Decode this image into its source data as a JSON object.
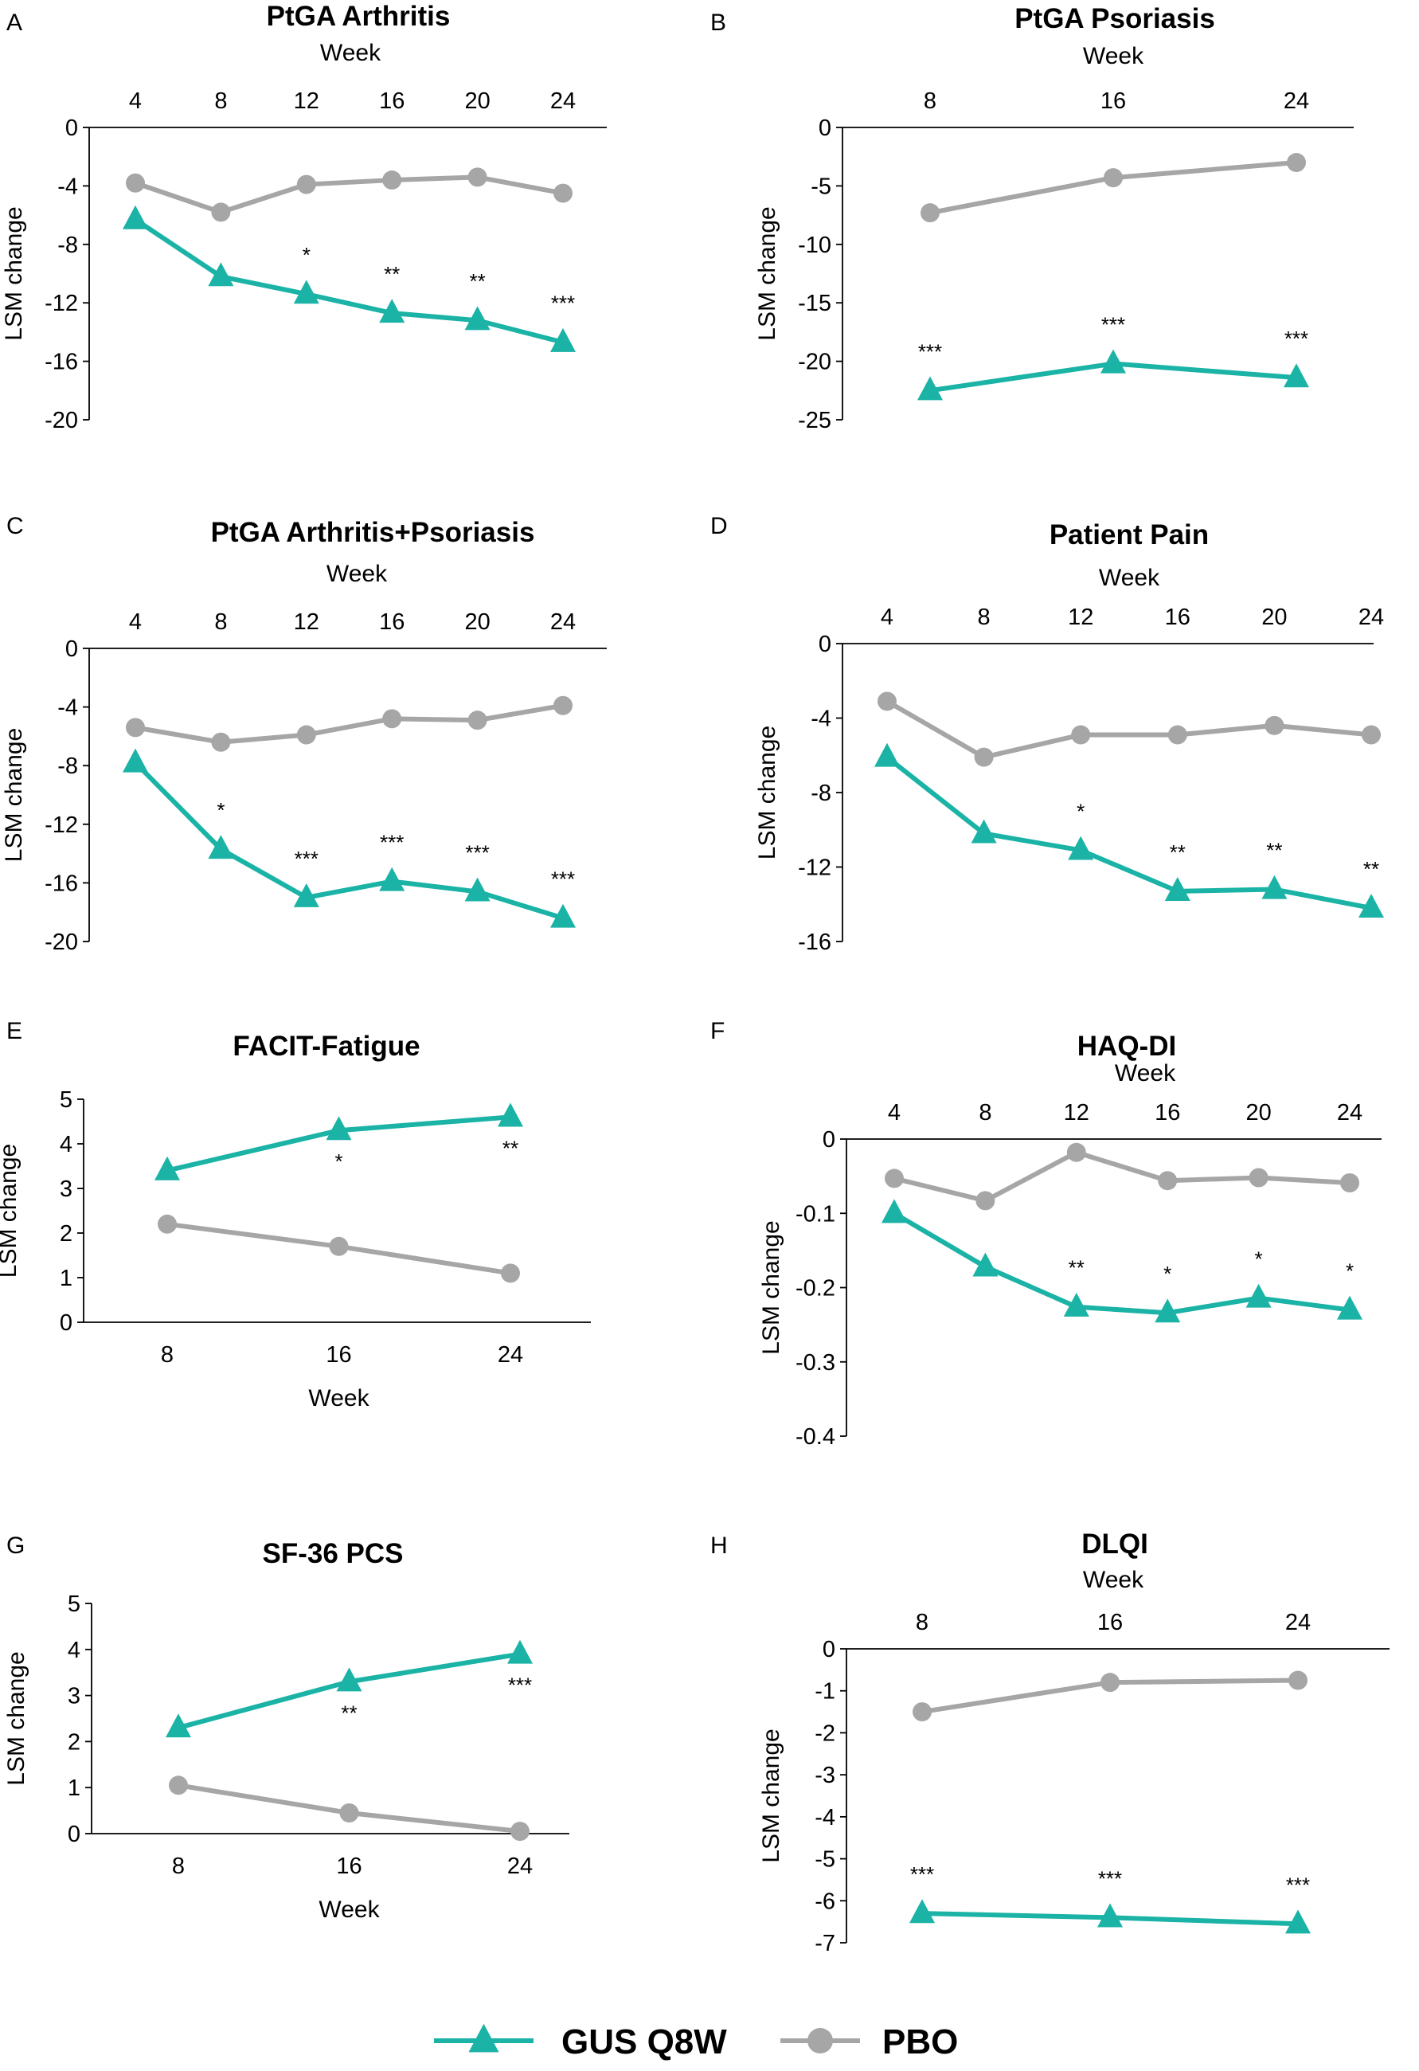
{
  "colors": {
    "gus": "#1ab3a6",
    "pbo": "#a6a6a6",
    "axis": "#000000"
  },
  "legend": [
    {
      "label": "GUS Q8W",
      "series": "gus",
      "marker": "triangle"
    },
    {
      "label": "PBO",
      "series": "pbo",
      "marker": "circle"
    }
  ],
  "chart_data": [
    {
      "letter": "A",
      "type": "line",
      "title": "PtGA Arthritis",
      "xlabel": "Week",
      "xlabel_position": "top",
      "ylabel": "LSM change",
      "x": [
        4,
        8,
        12,
        16,
        20,
        24
      ],
      "ylim": [
        -20,
        0
      ],
      "yticks": [
        0,
        -4,
        -8,
        -12,
        -16,
        -20
      ],
      "series": [
        {
          "name": "GUS Q8W",
          "key": "gus",
          "marker": "triangle",
          "values": [
            -6.3,
            -10.2,
            -11.4,
            -12.7,
            -13.2,
            -14.7
          ]
        },
        {
          "name": "PBO",
          "key": "pbo",
          "marker": "circle",
          "values": [
            -3.8,
            -5.8,
            -3.9,
            -3.6,
            -3.4,
            -4.5
          ]
        }
      ],
      "annotations": [
        "",
        "",
        "*",
        "**",
        "**",
        "***"
      ]
    },
    {
      "letter": "B",
      "type": "line",
      "title": "PtGA Psoriasis",
      "xlabel": "Week",
      "xlabel_position": "top",
      "ylabel": "LSM change",
      "x": [
        8,
        16,
        24
      ],
      "ylim": [
        -25,
        0
      ],
      "yticks": [
        0,
        -5,
        -10,
        -15,
        -20,
        -25
      ],
      "series": [
        {
          "name": "GUS Q8W",
          "key": "gus",
          "marker": "triangle",
          "values": [
            -22.5,
            -20.2,
            -21.4
          ]
        },
        {
          "name": "PBO",
          "key": "pbo",
          "marker": "circle",
          "values": [
            -7.3,
            -4.3,
            -3.0
          ]
        }
      ],
      "annotations": [
        "***",
        "***",
        "***"
      ]
    },
    {
      "letter": "C",
      "type": "line",
      "title": "PtGA Arthritis+Psoriasis",
      "xlabel": "Week",
      "xlabel_position": "top",
      "ylabel": "LSM change",
      "x": [
        4,
        8,
        12,
        16,
        20,
        24
      ],
      "ylim": [
        -20,
        0
      ],
      "yticks": [
        0,
        -4,
        -8,
        -12,
        -16,
        -20
      ],
      "series": [
        {
          "name": "GUS Q8W",
          "key": "gus",
          "marker": "triangle",
          "values": [
            -7.8,
            -13.7,
            -17.0,
            -15.9,
            -16.6,
            -18.4
          ]
        },
        {
          "name": "PBO",
          "key": "pbo",
          "marker": "circle",
          "values": [
            -5.4,
            -6.4,
            -5.9,
            -4.8,
            -4.9,
            -3.9
          ]
        }
      ],
      "annotations": [
        "",
        "*",
        "***",
        "***",
        "***",
        "***"
      ]
    },
    {
      "letter": "D",
      "type": "line",
      "title": "Patient Pain",
      "xlabel": "Week",
      "xlabel_position": "top",
      "ylabel": "LSM change",
      "x": [
        4,
        8,
        12,
        16,
        20,
        24
      ],
      "ylim": [
        -16,
        0
      ],
      "yticks": [
        0,
        -4,
        -8,
        -12,
        -16
      ],
      "series": [
        {
          "name": "GUS Q8W",
          "key": "gus",
          "marker": "triangle",
          "values": [
            -6.1,
            -10.2,
            -11.1,
            -13.3,
            -13.2,
            -14.2
          ]
        },
        {
          "name": "PBO",
          "key": "pbo",
          "marker": "circle",
          "values": [
            -3.1,
            -6.1,
            -4.9,
            -4.9,
            -4.4,
            -4.9
          ]
        }
      ],
      "annotations": [
        "",
        "",
        "*",
        "**",
        "**",
        "**"
      ]
    },
    {
      "letter": "E",
      "type": "line",
      "title": "FACIT-Fatigue",
      "xlabel": "Week",
      "xlabel_position": "bottom",
      "ylabel": "LSM change",
      "x": [
        8,
        16,
        24
      ],
      "ylim": [
        0,
        5
      ],
      "yticks": [
        0,
        1,
        2,
        3,
        4,
        5
      ],
      "series": [
        {
          "name": "GUS Q8W",
          "key": "gus",
          "marker": "triangle",
          "values": [
            3.4,
            4.3,
            4.6
          ]
        },
        {
          "name": "PBO",
          "key": "pbo",
          "marker": "circle",
          "values": [
            2.2,
            1.7,
            1.1
          ]
        }
      ],
      "annotations": [
        "",
        "*",
        "**"
      ]
    },
    {
      "letter": "F",
      "type": "line",
      "title": "HAQ-DI",
      "xlabel": "Week",
      "xlabel_position": "top",
      "ylabel": "LSM change",
      "x": [
        4,
        8,
        12,
        16,
        20,
        24
      ],
      "ylim": [
        -0.4,
        0
      ],
      "yticks": [
        0,
        -0.1,
        -0.2,
        -0.3,
        -0.4
      ],
      "series": [
        {
          "name": "GUS Q8W",
          "key": "gus",
          "marker": "triangle",
          "values": [
            -0.1,
            -0.172,
            -0.226,
            -0.234,
            -0.214,
            -0.23
          ]
        },
        {
          "name": "PBO",
          "key": "pbo",
          "marker": "circle",
          "values": [
            -0.053,
            -0.083,
            -0.018,
            -0.056,
            -0.052,
            -0.059
          ]
        }
      ],
      "annotations": [
        "",
        "",
        "**",
        "*",
        "*",
        "*"
      ]
    },
    {
      "letter": "G",
      "type": "line",
      "title": "SF-36 PCS",
      "xlabel": "Week",
      "xlabel_position": "bottom",
      "ylabel": "LSM change",
      "x": [
        8,
        16,
        24
      ],
      "ylim": [
        0,
        5
      ],
      "yticks": [
        0,
        1,
        2,
        3,
        4,
        5
      ],
      "series": [
        {
          "name": "GUS Q8W",
          "key": "gus",
          "marker": "triangle",
          "values": [
            2.3,
            3.3,
            3.9
          ]
        },
        {
          "name": "PBO",
          "key": "pbo",
          "marker": "circle",
          "values": [
            1.05,
            0.45,
            0.05
          ]
        }
      ],
      "annotations": [
        "",
        "**",
        "***"
      ]
    },
    {
      "letter": "H",
      "type": "line",
      "title": "DLQI",
      "xlabel": "Week",
      "xlabel_position": "top",
      "ylabel": "LSM change",
      "x": [
        8,
        16,
        24
      ],
      "ylim": [
        -7,
        0
      ],
      "yticks": [
        0,
        -1,
        -2,
        -3,
        -4,
        -5,
        -6,
        -7
      ],
      "series": [
        {
          "name": "GUS Q8W",
          "key": "gus",
          "marker": "triangle",
          "values": [
            -6.3,
            -6.4,
            -6.55
          ]
        },
        {
          "name": "PBO",
          "key": "pbo",
          "marker": "circle",
          "values": [
            -1.5,
            -0.8,
            -0.75
          ]
        }
      ],
      "annotations": [
        "***",
        "***",
        "***"
      ]
    }
  ]
}
